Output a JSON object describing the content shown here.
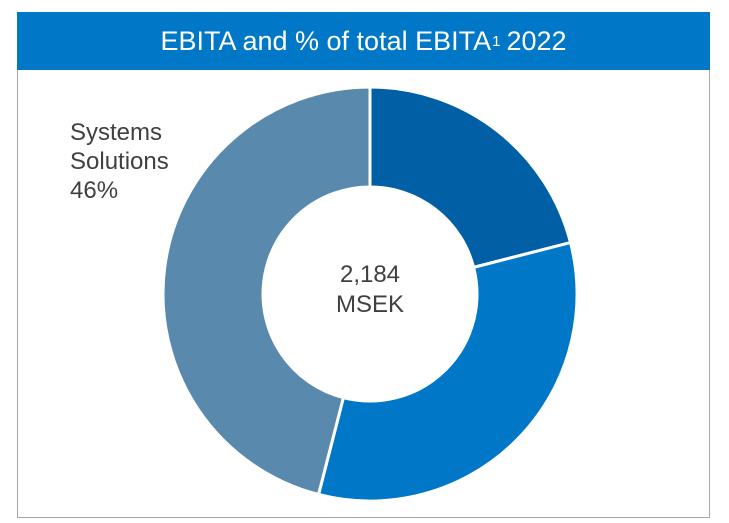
{
  "header": {
    "title_main": "EBITA and % of total EBITA",
    "title_sup": "1",
    "title_year": "2022"
  },
  "colors": {
    "header_bg": "#0177C8",
    "segment_dark_blue": "#005FA5",
    "segment_bright_blue": "#0177C8",
    "segment_steel_blue": "#5A89AE"
  },
  "center": {
    "value": "2,184",
    "unit": "MSEK"
  },
  "chart_data": {
    "type": "pie",
    "title": "EBITA and % of total EBITA1 2022",
    "center_text": "2,184 MSEK",
    "slices": [
      {
        "label": "",
        "percent": 21,
        "color": "#005FA5"
      },
      {
        "label": "",
        "percent": 33,
        "color": "#0177C8"
      },
      {
        "label": "Systems Solutions",
        "percent": 46,
        "value_label": "46%",
        "color": "#5A89AE"
      }
    ]
  },
  "segment_label": {
    "line1": "Systems",
    "line2": "Solutions",
    "line3": "46%"
  }
}
